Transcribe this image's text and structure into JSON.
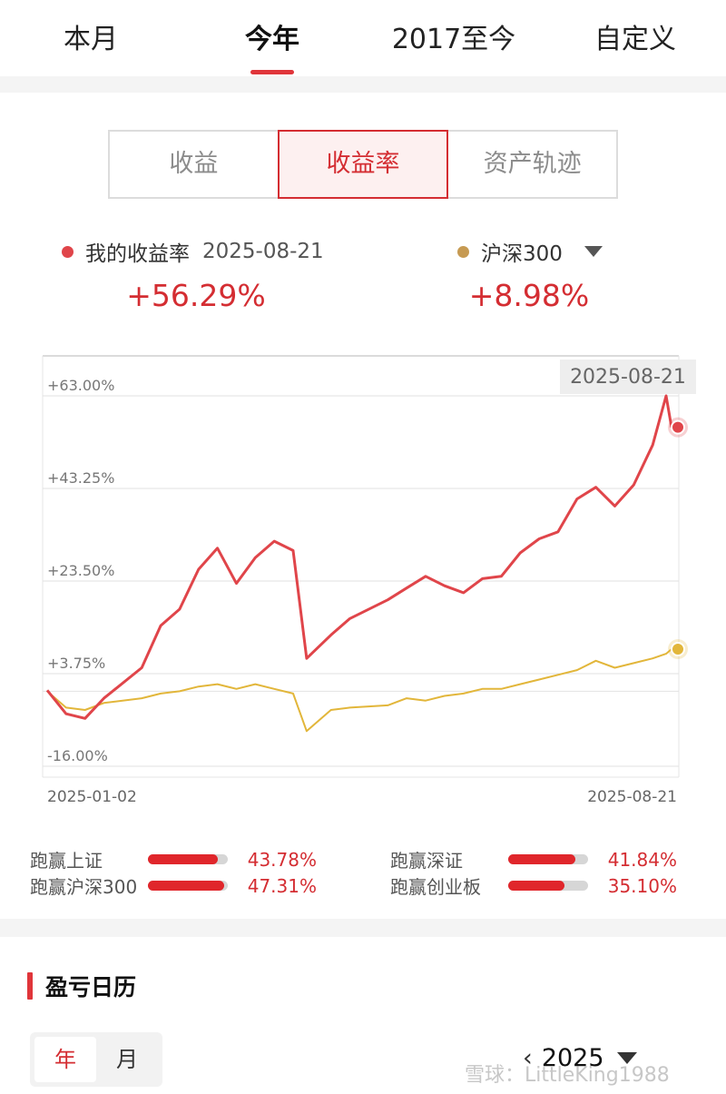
{
  "top_tabs": [
    {
      "label": "本月",
      "active": false
    },
    {
      "label": "今年",
      "active": true
    },
    {
      "label": "2017至今",
      "active": false
    },
    {
      "label": "自定义",
      "active": false
    }
  ],
  "segments": [
    {
      "label": "收益",
      "active": false
    },
    {
      "label": "收益率",
      "active": true
    },
    {
      "label": "资产轨迹",
      "active": false
    }
  ],
  "legend": {
    "mine": {
      "label": "我的收益率",
      "date": "2025-08-21",
      "value": "+56.29%",
      "color": "#e0454a"
    },
    "index": {
      "label": "沪深300",
      "value": "+8.98%",
      "color": "#c69a52"
    }
  },
  "chart_data": {
    "type": "line",
    "y_ticks": [
      "+63.00%",
      "+43.25%",
      "+23.50%",
      "+3.75%",
      "-16.00%"
    ],
    "ylim": [
      -16.0,
      63.0
    ],
    "x_labels": [
      "2025-01-02",
      "2025-08-21"
    ],
    "hover_label": "2025-08-21",
    "series": [
      {
        "name": "我的收益率",
        "color": "#e0454a",
        "x": [
          "2025-01-02",
          "2025-01-09",
          "2025-01-16",
          "2025-01-23",
          "2025-02-06",
          "2025-02-13",
          "2025-02-20",
          "2025-02-27",
          "2025-03-06",
          "2025-03-13",
          "2025-03-20",
          "2025-03-27",
          "2025-04-03",
          "2025-04-08",
          "2025-04-17",
          "2025-04-24",
          "2025-05-08",
          "2025-05-15",
          "2025-05-22",
          "2025-05-29",
          "2025-06-05",
          "2025-06-12",
          "2025-06-19",
          "2025-06-26",
          "2025-07-03",
          "2025-07-10",
          "2025-07-17",
          "2025-07-24",
          "2025-07-31",
          "2025-08-07",
          "2025-08-14",
          "2025-08-19",
          "2025-08-21"
        ],
        "values": [
          0.2,
          -4.8,
          -5.8,
          -1.5,
          5.0,
          14.0,
          17.5,
          26.0,
          30.5,
          23.0,
          28.5,
          32.0,
          30.0,
          7.0,
          12.0,
          15.5,
          19.5,
          22.0,
          24.5,
          22.5,
          21.0,
          24.0,
          24.5,
          29.5,
          32.5,
          34.0,
          41.0,
          43.5,
          39.5,
          44.0,
          52.5,
          63.0,
          56.29
        ]
      },
      {
        "name": "沪深300",
        "color": "#e2b63a",
        "x": [
          "2025-01-02",
          "2025-01-09",
          "2025-01-16",
          "2025-01-23",
          "2025-02-06",
          "2025-02-13",
          "2025-02-20",
          "2025-02-27",
          "2025-03-06",
          "2025-03-13",
          "2025-03-20",
          "2025-03-27",
          "2025-04-03",
          "2025-04-08",
          "2025-04-17",
          "2025-04-24",
          "2025-05-08",
          "2025-05-15",
          "2025-05-22",
          "2025-05-29",
          "2025-06-05",
          "2025-06-12",
          "2025-06-19",
          "2025-06-26",
          "2025-07-03",
          "2025-07-10",
          "2025-07-17",
          "2025-07-24",
          "2025-07-31",
          "2025-08-07",
          "2025-08-14",
          "2025-08-19",
          "2025-08-21"
        ],
        "values": [
          0.0,
          -3.5,
          -4.0,
          -2.5,
          -1.5,
          -0.5,
          0.0,
          1.0,
          1.5,
          0.5,
          1.5,
          0.5,
          -0.5,
          -8.5,
          -4.0,
          -3.5,
          -3.0,
          -1.5,
          -2.0,
          -1.0,
          -0.5,
          0.5,
          0.5,
          1.5,
          2.5,
          3.5,
          4.5,
          6.5,
          5.0,
          6.0,
          7.0,
          8.0,
          8.98
        ]
      }
    ]
  },
  "beats": [
    {
      "label": "跑赢上证",
      "value": "43.78%",
      "ratio": 0.88
    },
    {
      "label": "跑赢深证",
      "value": "41.84%",
      "ratio": 0.84
    },
    {
      "label": "跑赢沪深300",
      "value": "47.31%",
      "ratio": 0.95
    },
    {
      "label": "跑赢创业板",
      "value": "35.10%",
      "ratio": 0.7
    }
  ],
  "calendar": {
    "title": "盈亏日历",
    "tabs": [
      {
        "label": "年",
        "active": true
      },
      {
        "label": "月",
        "active": false
      }
    ],
    "prev": "‹",
    "year": "2025"
  },
  "watermark": "雪球：LittleKing1988"
}
